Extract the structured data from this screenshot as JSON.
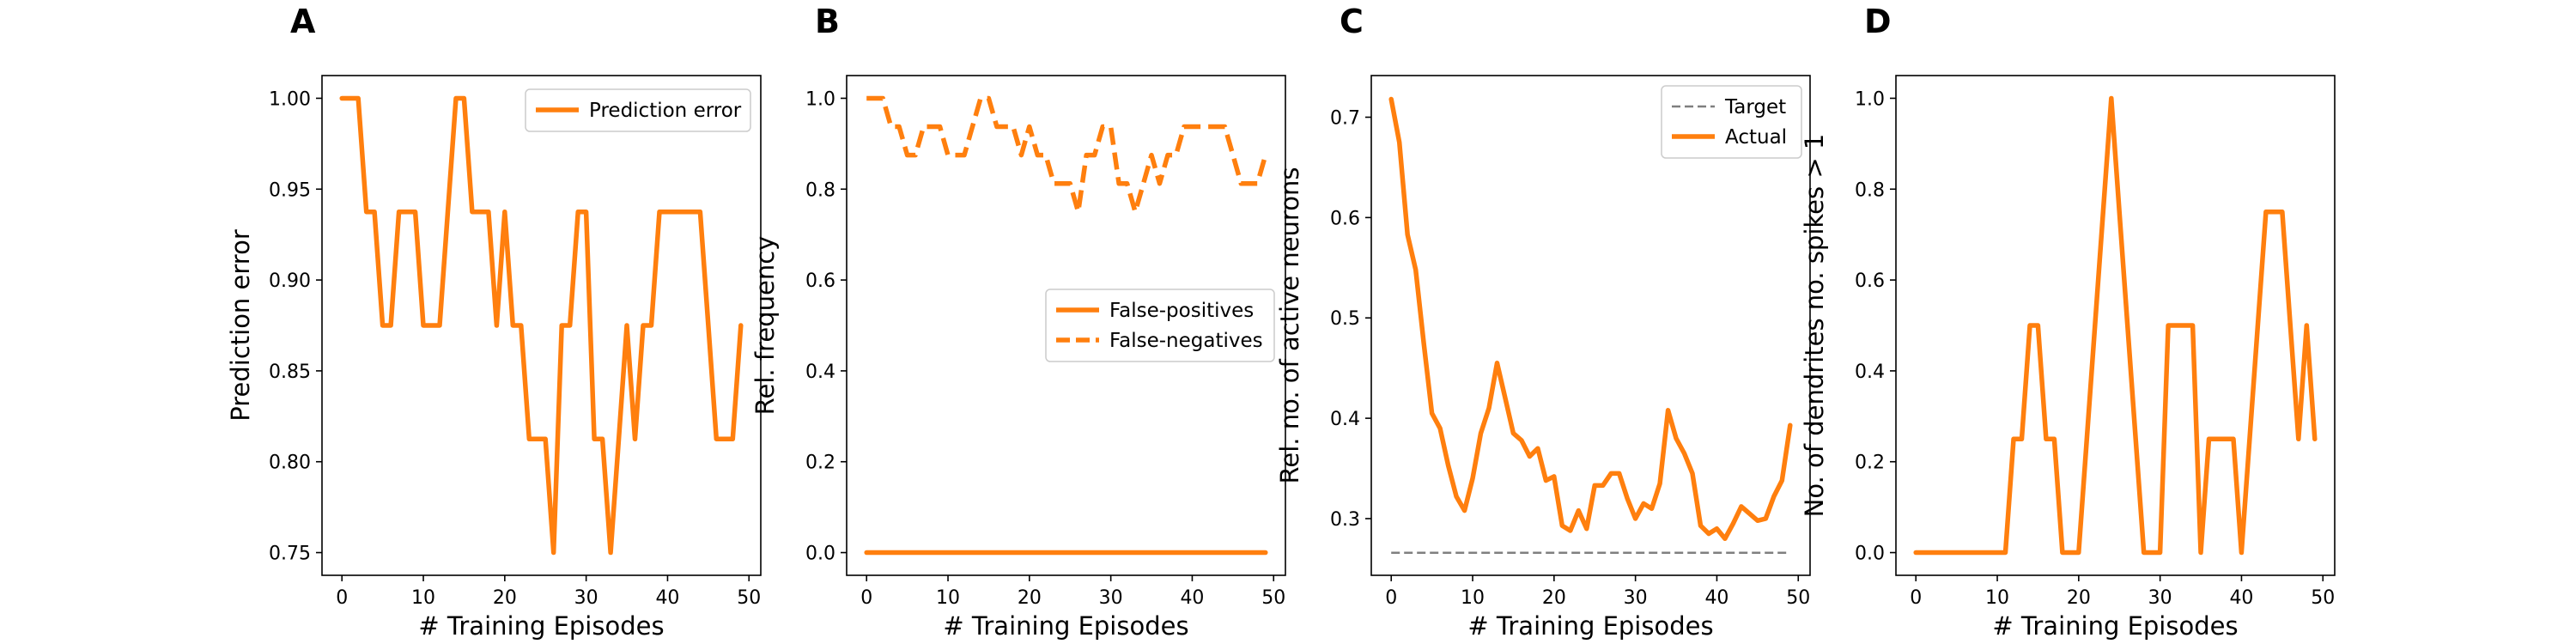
{
  "chart_data": [
    {
      "panel": "A",
      "type": "line",
      "xlabel": "# Training Episodes",
      "ylabel": "Prediction error",
      "xlim": [
        -2.45,
        51.45
      ],
      "ylim": [
        0.7375,
        1.0125
      ],
      "xticks": [
        0,
        10,
        20,
        30,
        40,
        50
      ],
      "xtick_labels": [
        "0",
        "10",
        "20",
        "30",
        "40",
        "50"
      ],
      "yticks": [
        0.75,
        0.8,
        0.85,
        0.9,
        0.95,
        1.0
      ],
      "ytick_labels": [
        "0.75",
        "0.80",
        "0.85",
        "0.90",
        "0.95",
        "1.00"
      ],
      "legend": "top-right",
      "grid": false,
      "series": [
        {
          "name": "Prediction error",
          "color": "#ff7f0e",
          "dash": "solid",
          "x": [
            0,
            1,
            2,
            3,
            4,
            5,
            6,
            7,
            8,
            9,
            10,
            11,
            12,
            13,
            14,
            15,
            16,
            17,
            18,
            19,
            20,
            21,
            22,
            23,
            24,
            25,
            26,
            27,
            28,
            29,
            30,
            31,
            32,
            33,
            34,
            35,
            36,
            37,
            38,
            39,
            40,
            41,
            42,
            43,
            44,
            45,
            46,
            47,
            48,
            49
          ],
          "values": [
            1.0,
            1.0,
            1.0,
            0.9375,
            0.9375,
            0.875,
            0.875,
            0.9375,
            0.9375,
            0.9375,
            0.875,
            0.875,
            0.875,
            0.9375,
            1.0,
            1.0,
            0.9375,
            0.9375,
            0.9375,
            0.875,
            0.9375,
            0.875,
            0.875,
            0.8125,
            0.8125,
            0.8125,
            0.75,
            0.875,
            0.875,
            0.9375,
            0.9375,
            0.8125,
            0.8125,
            0.75,
            0.8125,
            0.875,
            0.8125,
            0.875,
            0.875,
            0.9375,
            0.9375,
            0.9375,
            0.9375,
            0.9375,
            0.9375,
            0.875,
            0.8125,
            0.8125,
            0.8125,
            0.875
          ]
        }
      ]
    },
    {
      "panel": "B",
      "type": "line",
      "xlabel": "# Training Episodes",
      "ylabel": "Rel. frequency",
      "xlim": [
        -2.45,
        51.45
      ],
      "ylim": [
        -0.05,
        1.05
      ],
      "xticks": [
        0,
        10,
        20,
        30,
        40,
        50
      ],
      "xtick_labels": [
        "0",
        "10",
        "20",
        "30",
        "40",
        "50"
      ],
      "yticks": [
        0.0,
        0.2,
        0.4,
        0.6,
        0.8,
        1.0
      ],
      "ytick_labels": [
        "0.0",
        "0.2",
        "0.4",
        "0.6",
        "0.8",
        "1.0"
      ],
      "legend": "center-right",
      "grid": false,
      "series": [
        {
          "name": "False-positives",
          "color": "#ff7f0e",
          "dash": "solid",
          "x": [
            0,
            1,
            2,
            3,
            4,
            5,
            6,
            7,
            8,
            9,
            10,
            11,
            12,
            13,
            14,
            15,
            16,
            17,
            18,
            19,
            20,
            21,
            22,
            23,
            24,
            25,
            26,
            27,
            28,
            29,
            30,
            31,
            32,
            33,
            34,
            35,
            36,
            37,
            38,
            39,
            40,
            41,
            42,
            43,
            44,
            45,
            46,
            47,
            48,
            49
          ],
          "values": [
            0,
            0,
            0,
            0,
            0,
            0,
            0,
            0,
            0,
            0,
            0,
            0,
            0,
            0,
            0,
            0,
            0,
            0,
            0,
            0,
            0,
            0,
            0,
            0,
            0,
            0,
            0,
            0,
            0,
            0,
            0,
            0,
            0,
            0,
            0,
            0,
            0,
            0,
            0,
            0,
            0,
            0,
            0,
            0,
            0,
            0,
            0,
            0,
            0,
            0
          ]
        },
        {
          "name": "False-negatives",
          "color": "#ff7f0e",
          "dash": "dashed",
          "x": [
            0,
            1,
            2,
            3,
            4,
            5,
            6,
            7,
            8,
            9,
            10,
            11,
            12,
            13,
            14,
            15,
            16,
            17,
            18,
            19,
            20,
            21,
            22,
            23,
            24,
            25,
            26,
            27,
            28,
            29,
            30,
            31,
            32,
            33,
            34,
            35,
            36,
            37,
            38,
            39,
            40,
            41,
            42,
            43,
            44,
            45,
            46,
            47,
            48,
            49
          ],
          "values": [
            1.0,
            1.0,
            1.0,
            0.9375,
            0.9375,
            0.875,
            0.875,
            0.9375,
            0.9375,
            0.9375,
            0.875,
            0.875,
            0.875,
            0.9375,
            1.0,
            1.0,
            0.9375,
            0.9375,
            0.9375,
            0.875,
            0.9375,
            0.875,
            0.875,
            0.8125,
            0.8125,
            0.8125,
            0.75,
            0.875,
            0.875,
            0.9375,
            0.9375,
            0.8125,
            0.8125,
            0.75,
            0.8125,
            0.875,
            0.8125,
            0.875,
            0.875,
            0.9375,
            0.9375,
            0.9375,
            0.9375,
            0.9375,
            0.9375,
            0.875,
            0.8125,
            0.8125,
            0.8125,
            0.875
          ]
        }
      ]
    },
    {
      "panel": "C",
      "type": "line",
      "xlabel": "# Training Episodes",
      "ylabel": "Rel. no. of active neurons",
      "xlim": [
        -2.45,
        51.45
      ],
      "ylim": [
        0.2435,
        0.7415
      ],
      "xticks": [
        0,
        10,
        20,
        30,
        40,
        50
      ],
      "xtick_labels": [
        "0",
        "10",
        "20",
        "30",
        "40",
        "50"
      ],
      "yticks": [
        0.3,
        0.4,
        0.5,
        0.6,
        0.7
      ],
      "ytick_labels": [
        "0.3",
        "0.4",
        "0.5",
        "0.6",
        "0.7"
      ],
      "legend": "top-right",
      "grid": false,
      "series": [
        {
          "name": "Target",
          "color": "#7f7f7f",
          "dash": "dashed",
          "x": [
            0,
            49
          ],
          "values": [
            0.266,
            0.266
          ]
        },
        {
          "name": "Actual",
          "color": "#ff7f0e",
          "dash": "solid",
          "x": [
            0,
            1,
            2,
            3,
            4,
            5,
            6,
            7,
            8,
            9,
            10,
            11,
            12,
            13,
            14,
            15,
            16,
            17,
            18,
            19,
            20,
            21,
            22,
            23,
            24,
            25,
            26,
            27,
            28,
            29,
            30,
            31,
            32,
            33,
            34,
            35,
            36,
            37,
            38,
            39,
            40,
            41,
            42,
            43,
            44,
            45,
            46,
            47,
            48,
            49
          ],
          "values": [
            0.718,
            0.675,
            0.583,
            0.548,
            0.475,
            0.405,
            0.39,
            0.353,
            0.322,
            0.308,
            0.34,
            0.385,
            0.41,
            0.455,
            0.42,
            0.385,
            0.378,
            0.362,
            0.37,
            0.338,
            0.342,
            0.293,
            0.288,
            0.308,
            0.29,
            0.333,
            0.333,
            0.345,
            0.345,
            0.32,
            0.3,
            0.315,
            0.31,
            0.335,
            0.408,
            0.38,
            0.365,
            0.345,
            0.293,
            0.285,
            0.29,
            0.28,
            0.295,
            0.312,
            0.305,
            0.298,
            0.3,
            0.322,
            0.338,
            0.393
          ]
        }
      ]
    },
    {
      "panel": "D",
      "type": "line",
      "xlabel": "# Training Episodes",
      "ylabel": "No. of dendrites no. spikes > 1",
      "xlim": [
        -2.45,
        51.45
      ],
      "ylim": [
        -0.05,
        1.05
      ],
      "xticks": [
        0,
        10,
        20,
        30,
        40,
        50
      ],
      "xtick_labels": [
        "0",
        "10",
        "20",
        "30",
        "40",
        "50"
      ],
      "yticks": [
        0.0,
        0.2,
        0.4,
        0.6,
        0.8,
        1.0
      ],
      "ytick_labels": [
        "0.0",
        "0.2",
        "0.4",
        "0.6",
        "0.8",
        "1.0"
      ],
      "legend": "none",
      "grid": false,
      "series": [
        {
          "color": "#ff7f0e",
          "dash": "solid",
          "x": [
            0,
            1,
            2,
            3,
            4,
            5,
            6,
            7,
            8,
            9,
            10,
            11,
            12,
            13,
            14,
            15,
            16,
            17,
            18,
            19,
            20,
            21,
            22,
            23,
            24,
            25,
            26,
            27,
            28,
            29,
            30,
            31,
            32,
            33,
            34,
            35,
            36,
            37,
            38,
            39,
            40,
            41,
            42,
            43,
            44,
            45,
            46,
            47,
            48,
            49
          ],
          "values": [
            0,
            0,
            0,
            0,
            0,
            0,
            0,
            0,
            0,
            0,
            0,
            0,
            0.25,
            0.25,
            0.5,
            0.5,
            0.25,
            0.25,
            0,
            0,
            0,
            0.25,
            0.5,
            0.75,
            1.0,
            0.75,
            0.5,
            0.25,
            0,
            0,
            0,
            0.5,
            0.5,
            0.5,
            0.5,
            0,
            0.25,
            0.25,
            0.25,
            0.25,
            0,
            0.25,
            0.5,
            0.75,
            0.75,
            0.75,
            0.5,
            0.25,
            0.5,
            0.25
          ]
        }
      ]
    }
  ]
}
